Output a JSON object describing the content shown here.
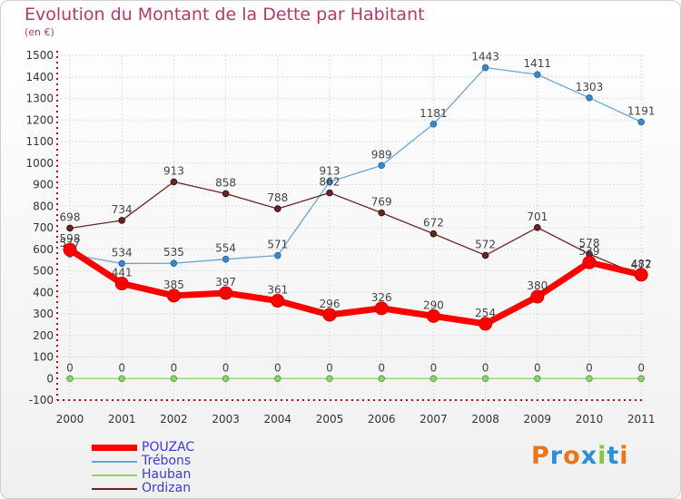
{
  "title": "Evolution du Montant de la Dette par Habitant",
  "subtitle": "(en €)",
  "logo_text": "Proxiti",
  "colors": {
    "title": "#b03a6b",
    "legend_text": "#3b3bd6",
    "axis": "#cc0000",
    "grid": "#dddddd",
    "POUZAC": "#ff0000",
    "Trébons": "#6aa6d8",
    "Hauban": "#88d466",
    "Ordizan": "#6b2424"
  },
  "chart_data": {
    "type": "line",
    "title": "Evolution du Montant de la Dette par Habitant",
    "subtitle": "(en €)",
    "xlabel": "",
    "ylabel": "",
    "categories": [
      "2000",
      "2001",
      "2002",
      "2003",
      "2004",
      "2005",
      "2006",
      "2007",
      "2008",
      "2009",
      "2010",
      "2011"
    ],
    "ylim": [
      -100,
      1500
    ],
    "yticks": [
      -100,
      0,
      100,
      200,
      300,
      400,
      500,
      600,
      700,
      800,
      900,
      1000,
      1100,
      1200,
      1300,
      1400,
      1500
    ],
    "grid": true,
    "legend_position": "bottom-left",
    "series": [
      {
        "name": "POUZAC",
        "values": [
          598,
          441,
          385,
          397,
          361,
          296,
          326,
          290,
          254,
          380,
          539,
          482
        ]
      },
      {
        "name": "Trébons",
        "values": [
          577,
          534,
          535,
          554,
          571,
          913,
          989,
          1181,
          1443,
          1411,
          1303,
          1191
        ]
      },
      {
        "name": "Hauban",
        "values": [
          0,
          0,
          0,
          0,
          0,
          0,
          0,
          0,
          0,
          0,
          0,
          0
        ]
      },
      {
        "name": "Ordizan",
        "values": [
          698,
          734,
          913,
          858,
          788,
          862,
          769,
          672,
          572,
          701,
          578,
          477
        ]
      }
    ]
  }
}
